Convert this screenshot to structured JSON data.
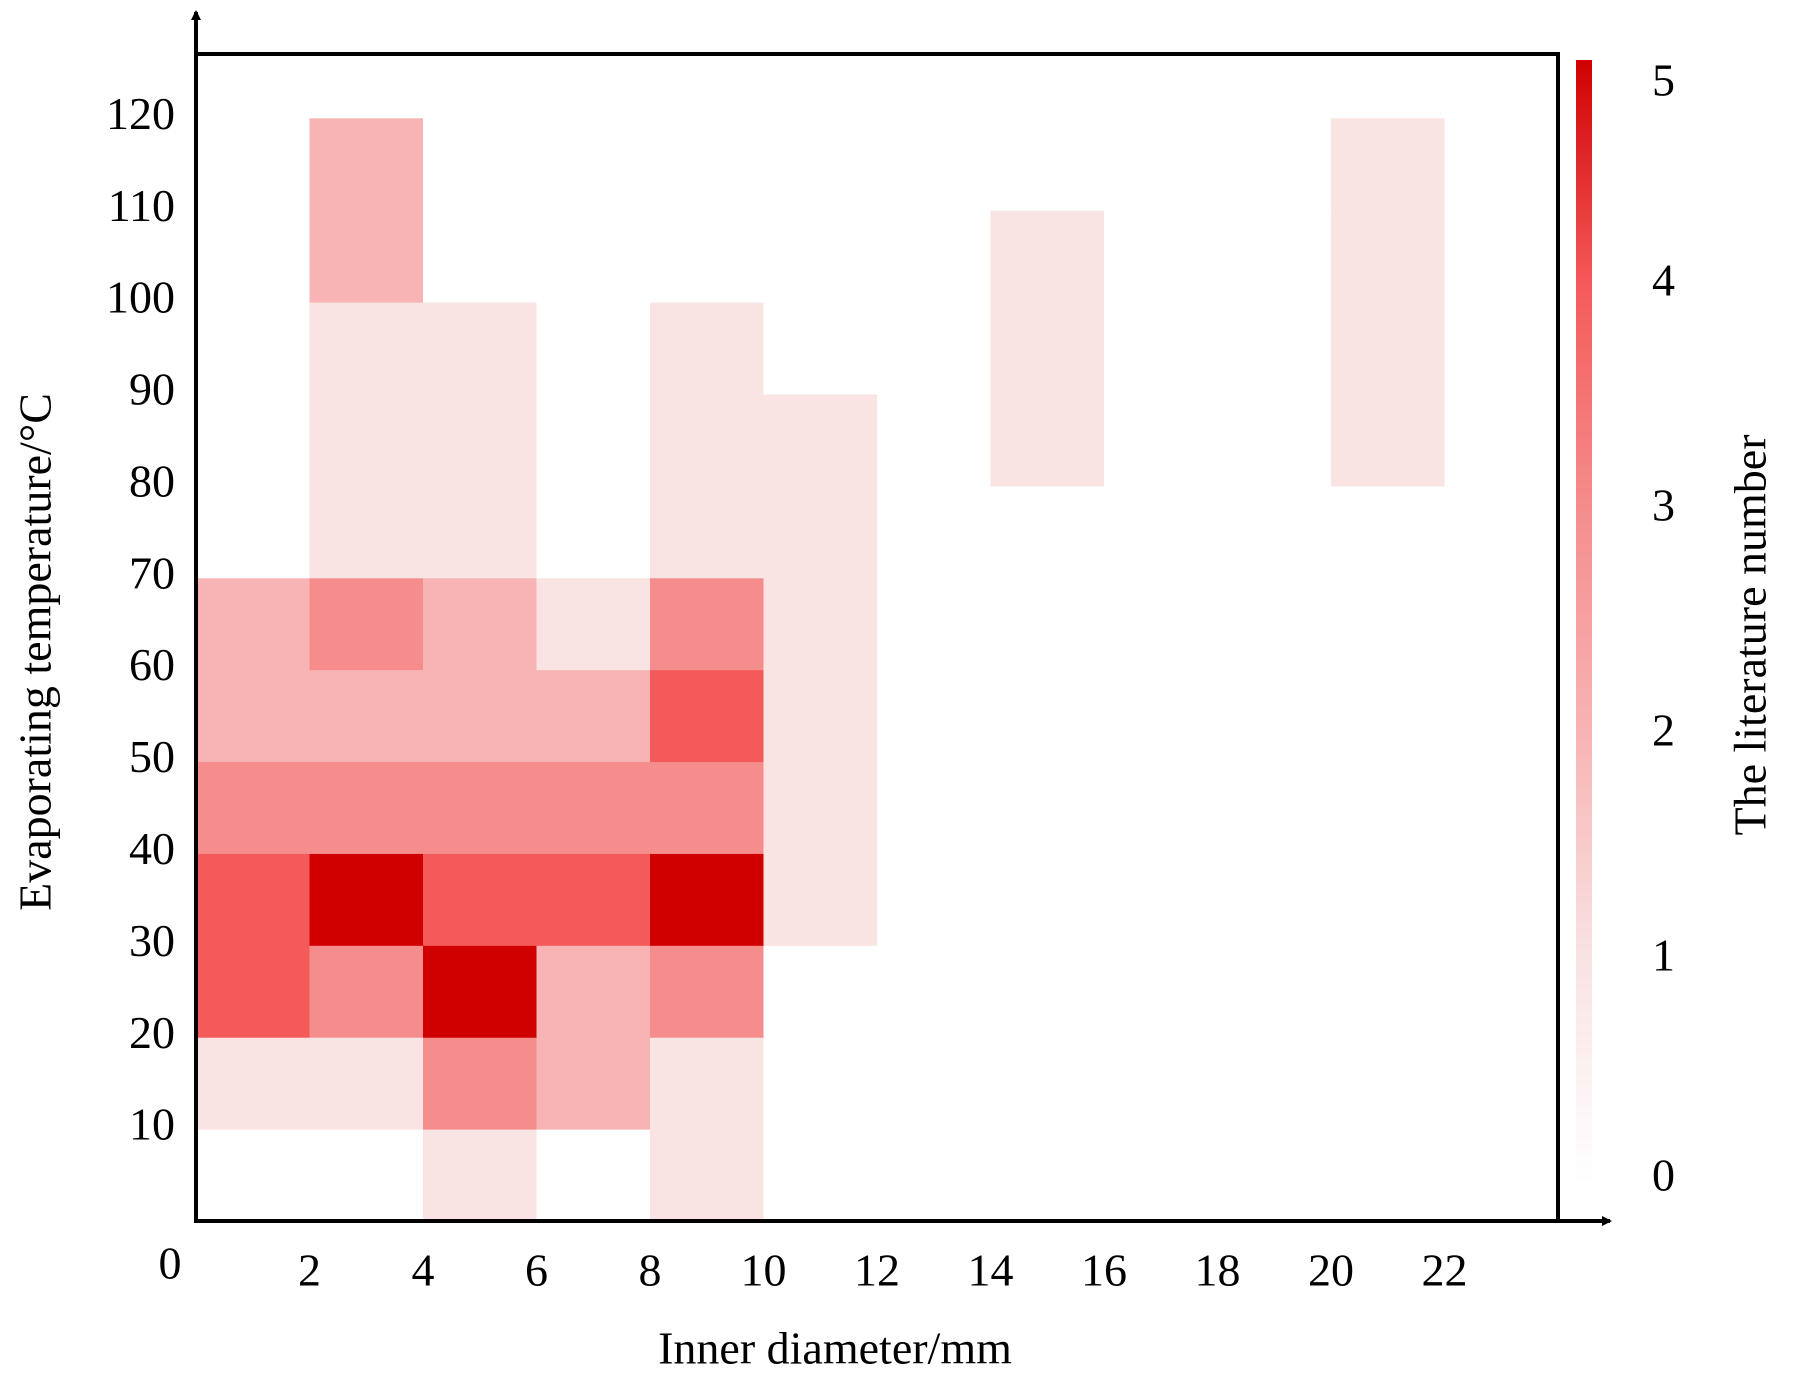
{
  "chart_data": {
    "type": "heatmap",
    "x_label": "Inner diameter/mm",
    "y_label": "Evaporating temperature/°C",
    "colorbar_label": "The literature number",
    "xbins": [
      0,
      2,
      4,
      6,
      8,
      10,
      12,
      14,
      16,
      18,
      20,
      22,
      24
    ],
    "ybins": [
      0,
      10,
      20,
      30,
      40,
      50,
      60,
      70,
      80,
      90,
      100,
      110,
      120
    ],
    "z": [
      [
        0,
        0,
        1,
        0,
        1,
        0,
        0,
        0,
        0,
        0,
        0,
        0
      ],
      [
        1,
        1,
        3,
        2,
        1,
        0,
        0,
        0,
        0,
        0,
        0,
        0
      ],
      [
        4,
        3,
        5,
        2,
        3,
        0,
        0,
        0,
        0,
        0,
        0,
        0
      ],
      [
        4,
        5,
        4,
        4,
        5,
        1,
        0,
        0,
        0,
        0,
        0,
        0
      ],
      [
        3,
        3,
        3,
        3,
        3,
        1,
        0,
        0,
        0,
        0,
        0,
        0
      ],
      [
        2,
        2,
        2,
        2,
        4,
        1,
        0,
        0,
        0,
        0,
        0,
        0
      ],
      [
        2,
        3,
        2,
        1,
        3,
        1,
        0,
        0,
        0,
        0,
        0,
        0
      ],
      [
        0,
        1,
        1,
        0,
        1,
        1,
        0,
        0,
        0,
        0,
        0,
        0
      ],
      [
        0,
        1,
        1,
        0,
        1,
        1,
        0,
        1,
        0,
        0,
        1,
        0
      ],
      [
        0,
        1,
        1,
        0,
        1,
        0,
        0,
        1,
        0,
        0,
        1,
        0
      ],
      [
        0,
        2,
        0,
        0,
        0,
        0,
        0,
        1,
        0,
        0,
        1,
        0
      ],
      [
        0,
        2,
        0,
        0,
        0,
        0,
        0,
        0,
        0,
        0,
        1,
        0
      ]
    ],
    "colormap": [
      "#ffffff",
      "#f9e3e3",
      "#f8b4b4",
      "#f58d8d",
      "#f55a5a",
      "#d00000"
    ],
    "clim": [
      0,
      5
    ],
    "cticks": [
      0,
      1,
      2,
      3,
      4,
      5
    ],
    "xlim": [
      0,
      24
    ],
    "ylim": [
      0,
      127
    ],
    "xticks": [
      0,
      2,
      4,
      6,
      8,
      10,
      12,
      14,
      16,
      18,
      20,
      22
    ],
    "yticks": [
      10,
      20,
      30,
      40,
      50,
      60,
      70,
      80,
      90,
      100,
      110,
      120
    ]
  }
}
